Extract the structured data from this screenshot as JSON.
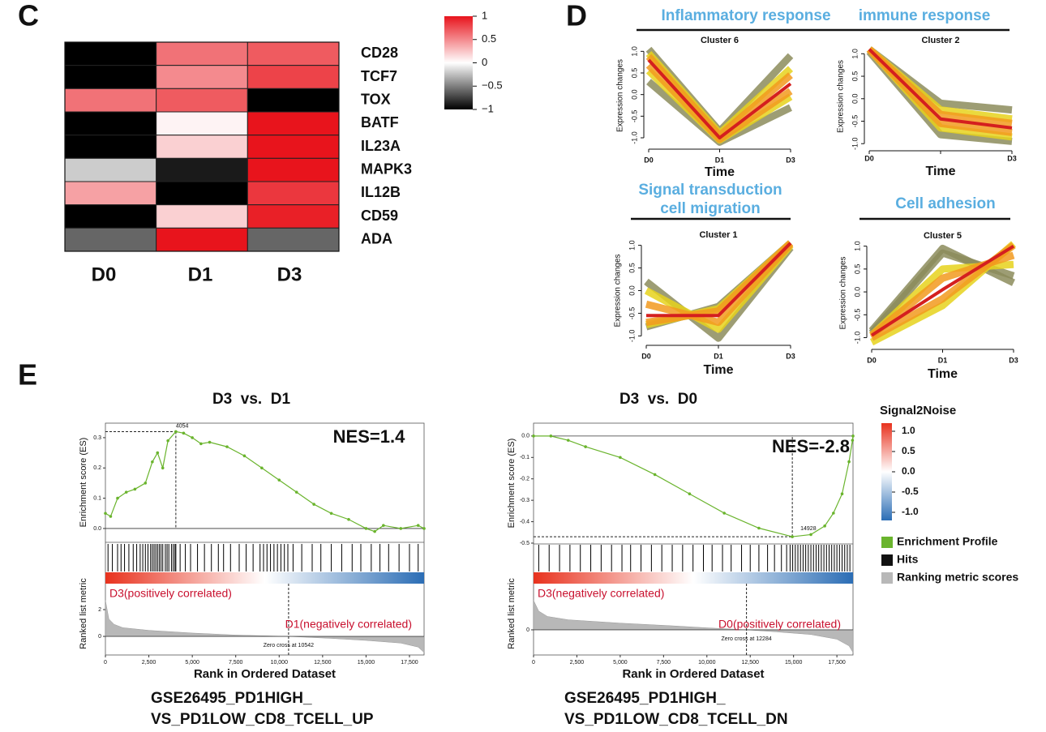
{
  "panel_labels": [
    "C",
    "D",
    "E"
  ],
  "chart_data": [
    {
      "type": "heatmap",
      "rows": [
        "CD28",
        "TCF7",
        "TOX",
        "BATF",
        "IL23A",
        "MAPK3",
        "IL12B",
        "CD59",
        "ADA"
      ],
      "columns": [
        "D0",
        "D1",
        "D3"
      ],
      "values": [
        [
          -1,
          0.6,
          0.7
        ],
        [
          -1,
          0.5,
          0.8
        ],
        [
          0.6,
          0.7,
          -1
        ],
        [
          -1,
          0.05,
          1
        ],
        [
          -1,
          0.2,
          1
        ],
        [
          -0.2,
          -0.9,
          1
        ],
        [
          0.4,
          -1,
          0.85
        ],
        [
          -1,
          0.2,
          0.95
        ],
        [
          -0.6,
          1,
          -0.6
        ]
      ],
      "clim": [
        -1,
        1
      ],
      "colors": [
        "#000000",
        "#ffffff",
        "#e8141c"
      ],
      "colorbar_ticks": [
        1,
        0.5,
        0,
        {
          "value": -0.5,
          "label": "−0.5"
        },
        {
          "value": -1,
          "label": "−1"
        }
      ]
    },
    {
      "type": "line",
      "header": [
        "Inflammatory response"
      ],
      "title": "Cluster 6",
      "categories": [
        "D0",
        "D1",
        "D3"
      ],
      "xlabel": "Time",
      "ylabel": "Expression changes",
      "ylim": [
        -1.15,
        1.1
      ],
      "yticks": [
        {
          "value": 1,
          "label": "1.0"
        },
        0.5,
        {
          "value": 0,
          "label": "0.0"
        },
        -0.5,
        {
          "value": -1,
          "label": "-1.0"
        }
      ],
      "series": [
        {
          "color": "#8c8c5c",
          "values": [
            1.05,
            -0.85,
            0.9
          ]
        },
        {
          "color": "#8c8c5c",
          "values": [
            0.3,
            -1.1,
            -0.3
          ]
        },
        {
          "color": "#e6d21c",
          "values": [
            0.95,
            -0.9,
            0.6
          ]
        },
        {
          "color": "#e6d21c",
          "values": [
            0.55,
            -1.05,
            -0.05
          ]
        },
        {
          "color": "#f29a1e",
          "values": [
            0.88,
            -0.95,
            0.45
          ]
        },
        {
          "color": "#f29a1e",
          "values": [
            0.68,
            -1.03,
            0.08
          ]
        },
        {
          "color": "#d41f1f",
          "values": [
            0.8,
            -1.0,
            0.25
          ]
        }
      ]
    },
    {
      "type": "line",
      "header": [
        "immune response"
      ],
      "title": "Cluster 2",
      "categories": [
        "D0",
        null,
        "D3"
      ],
      "xlabel": "Time",
      "ylabel": "Expression changes",
      "ylim": [
        -1.05,
        1.15
      ],
      "yticks": [
        {
          "value": 1,
          "label": "1.0"
        },
        0.5,
        {
          "value": 0,
          "label": "0.0"
        },
        -0.5,
        {
          "value": -1,
          "label": "-1.0"
        }
      ],
      "series": [
        {
          "color": "#8c8c5c",
          "values": [
            1.1,
            -0.1,
            -0.25
          ]
        },
        {
          "color": "#8c8c5c",
          "values": [
            1.05,
            -0.8,
            -0.95
          ]
        },
        {
          "color": "#e6d21c",
          "values": [
            1.1,
            -0.25,
            -0.45
          ]
        },
        {
          "color": "#e6d21c",
          "values": [
            1.1,
            -0.65,
            -0.85
          ]
        },
        {
          "color": "#f29a1e",
          "values": [
            1.1,
            -0.35,
            -0.55
          ]
        },
        {
          "color": "#f29a1e",
          "values": [
            1.1,
            -0.55,
            -0.75
          ]
        },
        {
          "color": "#d41f1f",
          "values": [
            1.1,
            -0.45,
            -0.65
          ]
        }
      ]
    },
    {
      "type": "line",
      "header": [
        "Signal transduction",
        "cell migration"
      ],
      "title": "Cluster 1",
      "categories": [
        "D0",
        "D1",
        "D3"
      ],
      "xlabel": "Time",
      "ylabel": "Expression changes",
      "ylim": [
        -1.1,
        1.1
      ],
      "yticks": [
        {
          "value": 1,
          "label": "1.0"
        },
        0.5,
        {
          "value": 0,
          "label": "0.0"
        },
        -0.5,
        {
          "value": -1,
          "label": "-1.0"
        }
      ],
      "series": [
        {
          "color": "#8c8c5c",
          "values": [
            0.2,
            -1.05,
            0.95
          ]
        },
        {
          "color": "#8c8c5c",
          "values": [
            -0.8,
            -0.35,
            1.05
          ]
        },
        {
          "color": "#e6d21c",
          "values": [
            0.0,
            -0.85,
            1.0
          ]
        },
        {
          "color": "#e6d21c",
          "values": [
            -0.75,
            -0.4,
            1.05
          ]
        },
        {
          "color": "#f29a1e",
          "values": [
            -0.3,
            -0.7,
            1.03
          ]
        },
        {
          "color": "#f29a1e",
          "values": [
            -0.7,
            -0.45,
            1.05
          ]
        },
        {
          "color": "#d41f1f",
          "values": [
            -0.55,
            -0.55,
            1.05
          ]
        }
      ]
    },
    {
      "type": "line",
      "header": [
        "Cell adhesion"
      ],
      "title": "Cluster 5",
      "categories": [
        "D0",
        "D1",
        "D3"
      ],
      "xlabel": "Time",
      "ylabel": "Expression changes",
      "ylim": [
        -1.15,
        1.1
      ],
      "yticks": [
        {
          "value": 1,
          "label": "1.0"
        },
        0.5,
        {
          "value": 0,
          "label": "0.0"
        },
        -0.5,
        {
          "value": -1,
          "label": "-1.0"
        }
      ],
      "series": [
        {
          "color": "#8c8c5c",
          "values": [
            -0.85,
            0.95,
            0.2
          ]
        },
        {
          "color": "#8c8c5c",
          "values": [
            -0.9,
            0.85,
            0.35
          ]
        },
        {
          "color": "#e6d21c",
          "values": [
            -1.1,
            -0.3,
            1.05
          ]
        },
        {
          "color": "#e6d21c",
          "values": [
            -0.95,
            0.5,
            0.6
          ]
        },
        {
          "color": "#f29a1e",
          "values": [
            -1.0,
            -0.15,
            1.02
          ]
        },
        {
          "color": "#f29a1e",
          "values": [
            -0.95,
            0.3,
            0.8
          ]
        },
        {
          "color": "#d41f1f",
          "values": [
            -0.95,
            0.05,
            1.0
          ]
        }
      ]
    },
    {
      "type": "gsea",
      "title": "D3  vs.  D1",
      "nes": "NES=1.4",
      "peak_rank": 4054,
      "peak_es": 0.32,
      "ylabel_es": "Enrichment score (ES)",
      "ylabel_metric": "Ranked list metric",
      "xlabel": "Rank in Ordered Dataset",
      "pos_label": "D3(positively correlated)",
      "neg_label": "D1(negatively correlated)",
      "zero_cross": {
        "value": 10542,
        "label": "Zero cross at 10542"
      },
      "gene_set": [
        "GSE26495_PD1HIGH_",
        "VS_PD1LOW_CD8_TCELL_UP"
      ],
      "xlim": [
        0,
        18340
      ],
      "es_ylim": [
        -0.043,
        0.348
      ],
      "metric_ylim": [
        -1.39,
        3.94
      ],
      "xticks": [
        0,
        {
          "value": 2500,
          "label": "2,500"
        },
        {
          "value": 5000,
          "label": "5,000"
        },
        {
          "value": 7500,
          "label": "7,500"
        },
        {
          "value": 10000,
          "label": "10,000"
        },
        {
          "value": 12500,
          "label": "12,500"
        },
        {
          "value": 15000,
          "label": "15,000"
        },
        {
          "value": 17500,
          "label": "17,500"
        }
      ],
      "es_yticks": [
        {
          "value": 0,
          "label": "0.0"
        },
        0.1,
        0.2,
        0.3
      ],
      "metric_yticks": [
        0,
        2
      ],
      "x": [
        0,
        300,
        700,
        1200,
        1700,
        2300,
        2700,
        3000,
        3300,
        3600,
        4054,
        4500,
        5000,
        5500,
        6000,
        7000,
        8000,
        9000,
        10000,
        11000,
        12000,
        13000,
        14000,
        15000,
        15500,
        16000,
        17000,
        18000,
        18340
      ],
      "values": [
        0.05,
        0.04,
        0.1,
        0.12,
        0.13,
        0.15,
        0.22,
        0.25,
        0.2,
        0.29,
        0.32,
        0.315,
        0.3,
        0.28,
        0.285,
        0.27,
        0.24,
        0.2,
        0.16,
        0.12,
        0.08,
        0.05,
        0.03,
        0.0,
        -0.01,
        0.01,
        0.0,
        0.01,
        0.0
      ],
      "hits": [
        150,
        400,
        700,
        900,
        1100,
        1350,
        1600,
        1800,
        2000,
        2150,
        2300,
        2450,
        2600,
        2700,
        2800,
        2900,
        3000,
        3100,
        3200,
        3300,
        3450,
        3550,
        3650,
        3800,
        3900,
        4000,
        4054,
        4300,
        4600,
        4900,
        5300,
        5700,
        6100,
        6500,
        6800,
        7200,
        7700,
        8100,
        8500,
        8900,
        9100,
        9300,
        9500,
        9700,
        9900,
        10100,
        10300,
        10500,
        10800,
        11300,
        11900,
        12400,
        13000,
        13600,
        14200,
        14700,
        15300,
        15800,
        16300,
        16900,
        17500,
        18000
      ],
      "metric": {
        "x": [
          0,
          200,
          500,
          1000,
          2500,
          5000,
          7500,
          10542,
          13000,
          15000,
          17000,
          18000,
          18340
        ],
        "values": [
          2.7,
          1.3,
          0.9,
          0.65,
          0.45,
          0.25,
          0.1,
          0,
          -0.15,
          -0.3,
          -0.5,
          -0.8,
          -1.2
        ]
      },
      "es_color": "#6ab42d",
      "hit_color": "#000000",
      "metric_color": "#b8b8b8"
    },
    {
      "type": "gsea",
      "title": "D3  vs.  D0",
      "nes": "NES=-2.8",
      "peak_rank": 14928,
      "peak_es": -0.47,
      "ylabel_es": "Enrichment score (ES)",
      "ylabel_metric": "Ranked list metric",
      "xlabel": "Rank in Ordered Dataset",
      "pos_label": "D3(negatively correlated)",
      "neg_label": "D0(positively correlated)",
      "zero_cross": {
        "value": 12284,
        "label": "Zero cross at 12284"
      },
      "gene_set": [
        "GSE26495_PD1HIGH_",
        "VS_PD1LOW_CD8_TCELL_DN"
      ],
      "xlim": [
        0,
        18430
      ],
      "es_ylim": [
        -0.5,
        0.06
      ],
      "metric_ylim": [
        -1.88,
        3.45
      ],
      "xticks": [
        0,
        {
          "value": 2500,
          "label": "2,500"
        },
        {
          "value": 5000,
          "label": "5,000"
        },
        {
          "value": 7500,
          "label": "7,500"
        },
        {
          "value": 10000,
          "label": "10,000"
        },
        {
          "value": 12500,
          "label": "12,500"
        },
        {
          "value": 15000,
          "label": "15,000"
        },
        {
          "value": 17500,
          "label": "17,500"
        }
      ],
      "es_yticks": [
        {
          "value": 0,
          "label": "0.0"
        },
        -0.1,
        -0.2,
        -0.3,
        -0.4,
        -0.5
      ],
      "metric_yticks": [
        0
      ],
      "x": [
        0,
        1000,
        2000,
        3000,
        5000,
        7000,
        9000,
        11000,
        13000,
        14928,
        16000,
        16800,
        17300,
        17800,
        18200,
        18400,
        18430
      ],
      "values": [
        0,
        0,
        -0.02,
        -0.05,
        -0.1,
        -0.18,
        -0.27,
        -0.36,
        -0.43,
        -0.47,
        -0.46,
        -0.42,
        -0.36,
        -0.27,
        -0.12,
        -0.02,
        0
      ],
      "hits": [
        300,
        900,
        1500,
        2100,
        2700,
        3300,
        3900,
        4500,
        5100,
        5600,
        6200,
        6800,
        7400,
        8000,
        8600,
        9200,
        9800,
        10300,
        10900,
        11400,
        12000,
        12500,
        13000,
        13500,
        13900,
        14300,
        14600,
        14800,
        14950,
        15100,
        15250,
        15400,
        15550,
        15700,
        15850,
        16000,
        16150,
        16300,
        16450,
        16600,
        16750,
        16900,
        17050,
        17200,
        17350,
        17500,
        17650,
        17800,
        17950,
        18100,
        18250
      ],
      "metric": {
        "x": [
          0,
          300,
          800,
          2000,
          5000,
          8000,
          10000,
          12284,
          14000,
          16000,
          17500,
          18200,
          18430
        ],
        "values": [
          2.2,
          1.4,
          1.0,
          0.75,
          0.5,
          0.3,
          0.15,
          0,
          -0.15,
          -0.35,
          -0.7,
          -1.2,
          -1.7
        ]
      },
      "es_color": "#6ab42d",
      "hit_color": "#000000",
      "metric_color": "#b8b8b8"
    }
  ],
  "legend": {
    "title": "Signal2Noise",
    "clim": [
      -1,
      1
    ],
    "colors": [
      "#2b6db5",
      "#ffffff",
      "#e8321e"
    ],
    "ticks": [
      {
        "value": 1,
        "label": "1.0"
      },
      0.5,
      {
        "value": 0,
        "label": "0.0"
      },
      -0.5,
      {
        "value": -1,
        "label": "-1.0"
      }
    ],
    "entries": [
      {
        "name": "Enrichment Profile",
        "color": "#6ab42d"
      },
      {
        "name": "Hits",
        "color": "#111111"
      },
      {
        "name": "Ranking metric scores",
        "color": "#b8b8b8"
      }
    ]
  }
}
